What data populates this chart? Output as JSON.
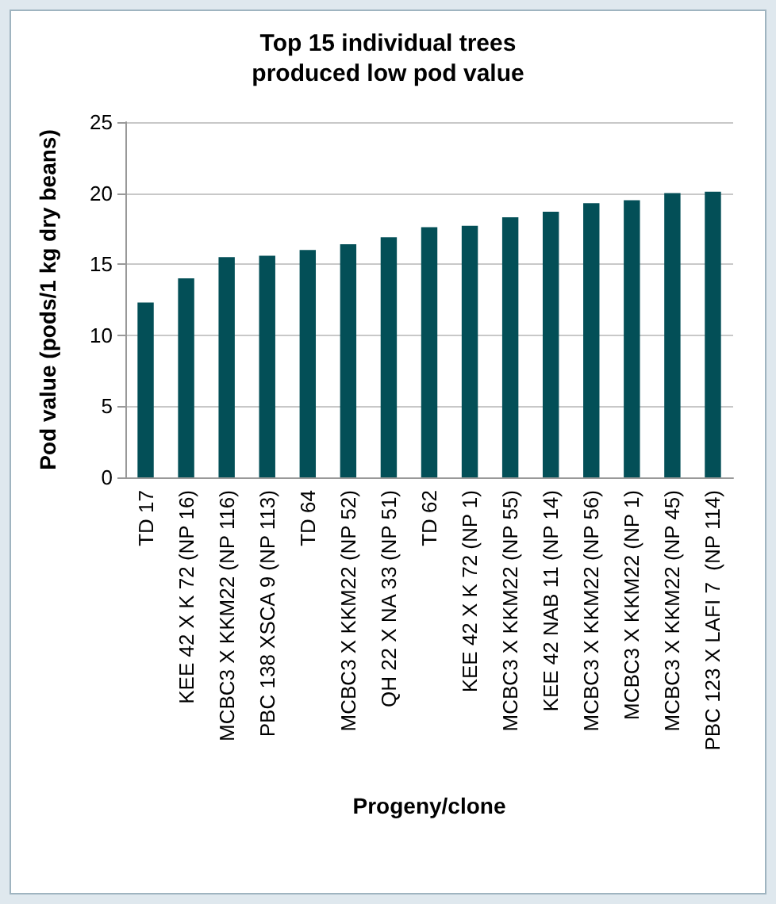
{
  "chart_data": {
    "type": "bar",
    "title": "Top 15 individual trees\nproduced low pod value",
    "xlabel": "Progeny/clone",
    "ylabel": "Pod value (pods/1 kg dry beans)",
    "categories": [
      "TD 17",
      "KEE 42 X K 72 (NP 16)",
      "MCBC3 X KKM22 (NP 116)",
      "PBC 138 XSCA 9 (NP 113)",
      "TD 64",
      "MCBC3 X KKM22 (NP 52)",
      "QH 22 X NA 33 (NP 51)",
      "TD 62",
      "KEE 42 X K 72 (NP 1)",
      "MCBC3 X KKM22 (NP 55)",
      "KEE 42 NAB 11 (NP 14)",
      "MCBC3 X KKM22 (NP 56)",
      "MCBC3 X KKM22 (NP 1)",
      "MCBC3 X KKM22 (NP 45)",
      "PBC 123 X LAFI 7  (NP 114)"
    ],
    "values": [
      12.3,
      14.0,
      15.5,
      15.6,
      16.0,
      16.4,
      16.9,
      17.6,
      17.7,
      18.3,
      18.7,
      19.3,
      19.5,
      20.0,
      20.1
    ],
    "color": "#034f57",
    "ylim": [
      0,
      25
    ],
    "yticks": [
      0,
      5,
      10,
      15,
      20,
      25
    ],
    "grid": "y"
  }
}
